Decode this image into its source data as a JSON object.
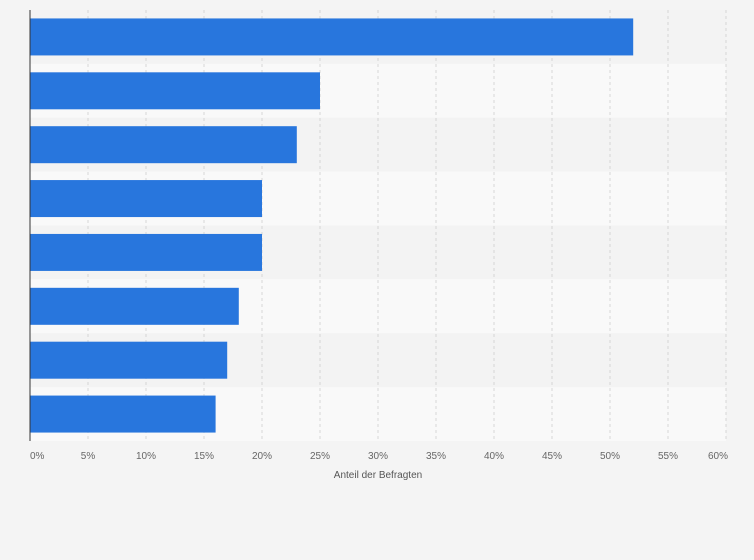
{
  "colors": {
    "bar": "#2876dd",
    "band_light": "#f9f9f9",
    "band_dark": "#f3f3f3",
    "grid": "#d6d6d6",
    "axis": "#333333"
  },
  "chart_data": {
    "type": "bar",
    "orientation": "horizontal",
    "values": [
      52,
      25,
      23,
      20,
      20,
      18,
      17,
      16
    ],
    "xlabel": "Anteil der Befragten",
    "xlim": [
      0,
      60
    ],
    "xticks": [
      0,
      5,
      10,
      15,
      20,
      25,
      30,
      35,
      40,
      45,
      50,
      55,
      60
    ],
    "xtick_labels": [
      "0%",
      "5%",
      "10%",
      "15%",
      "20%",
      "25%",
      "30%",
      "35%",
      "40%",
      "45%",
      "50%",
      "55%",
      "60%"
    ],
    "grid": true
  }
}
